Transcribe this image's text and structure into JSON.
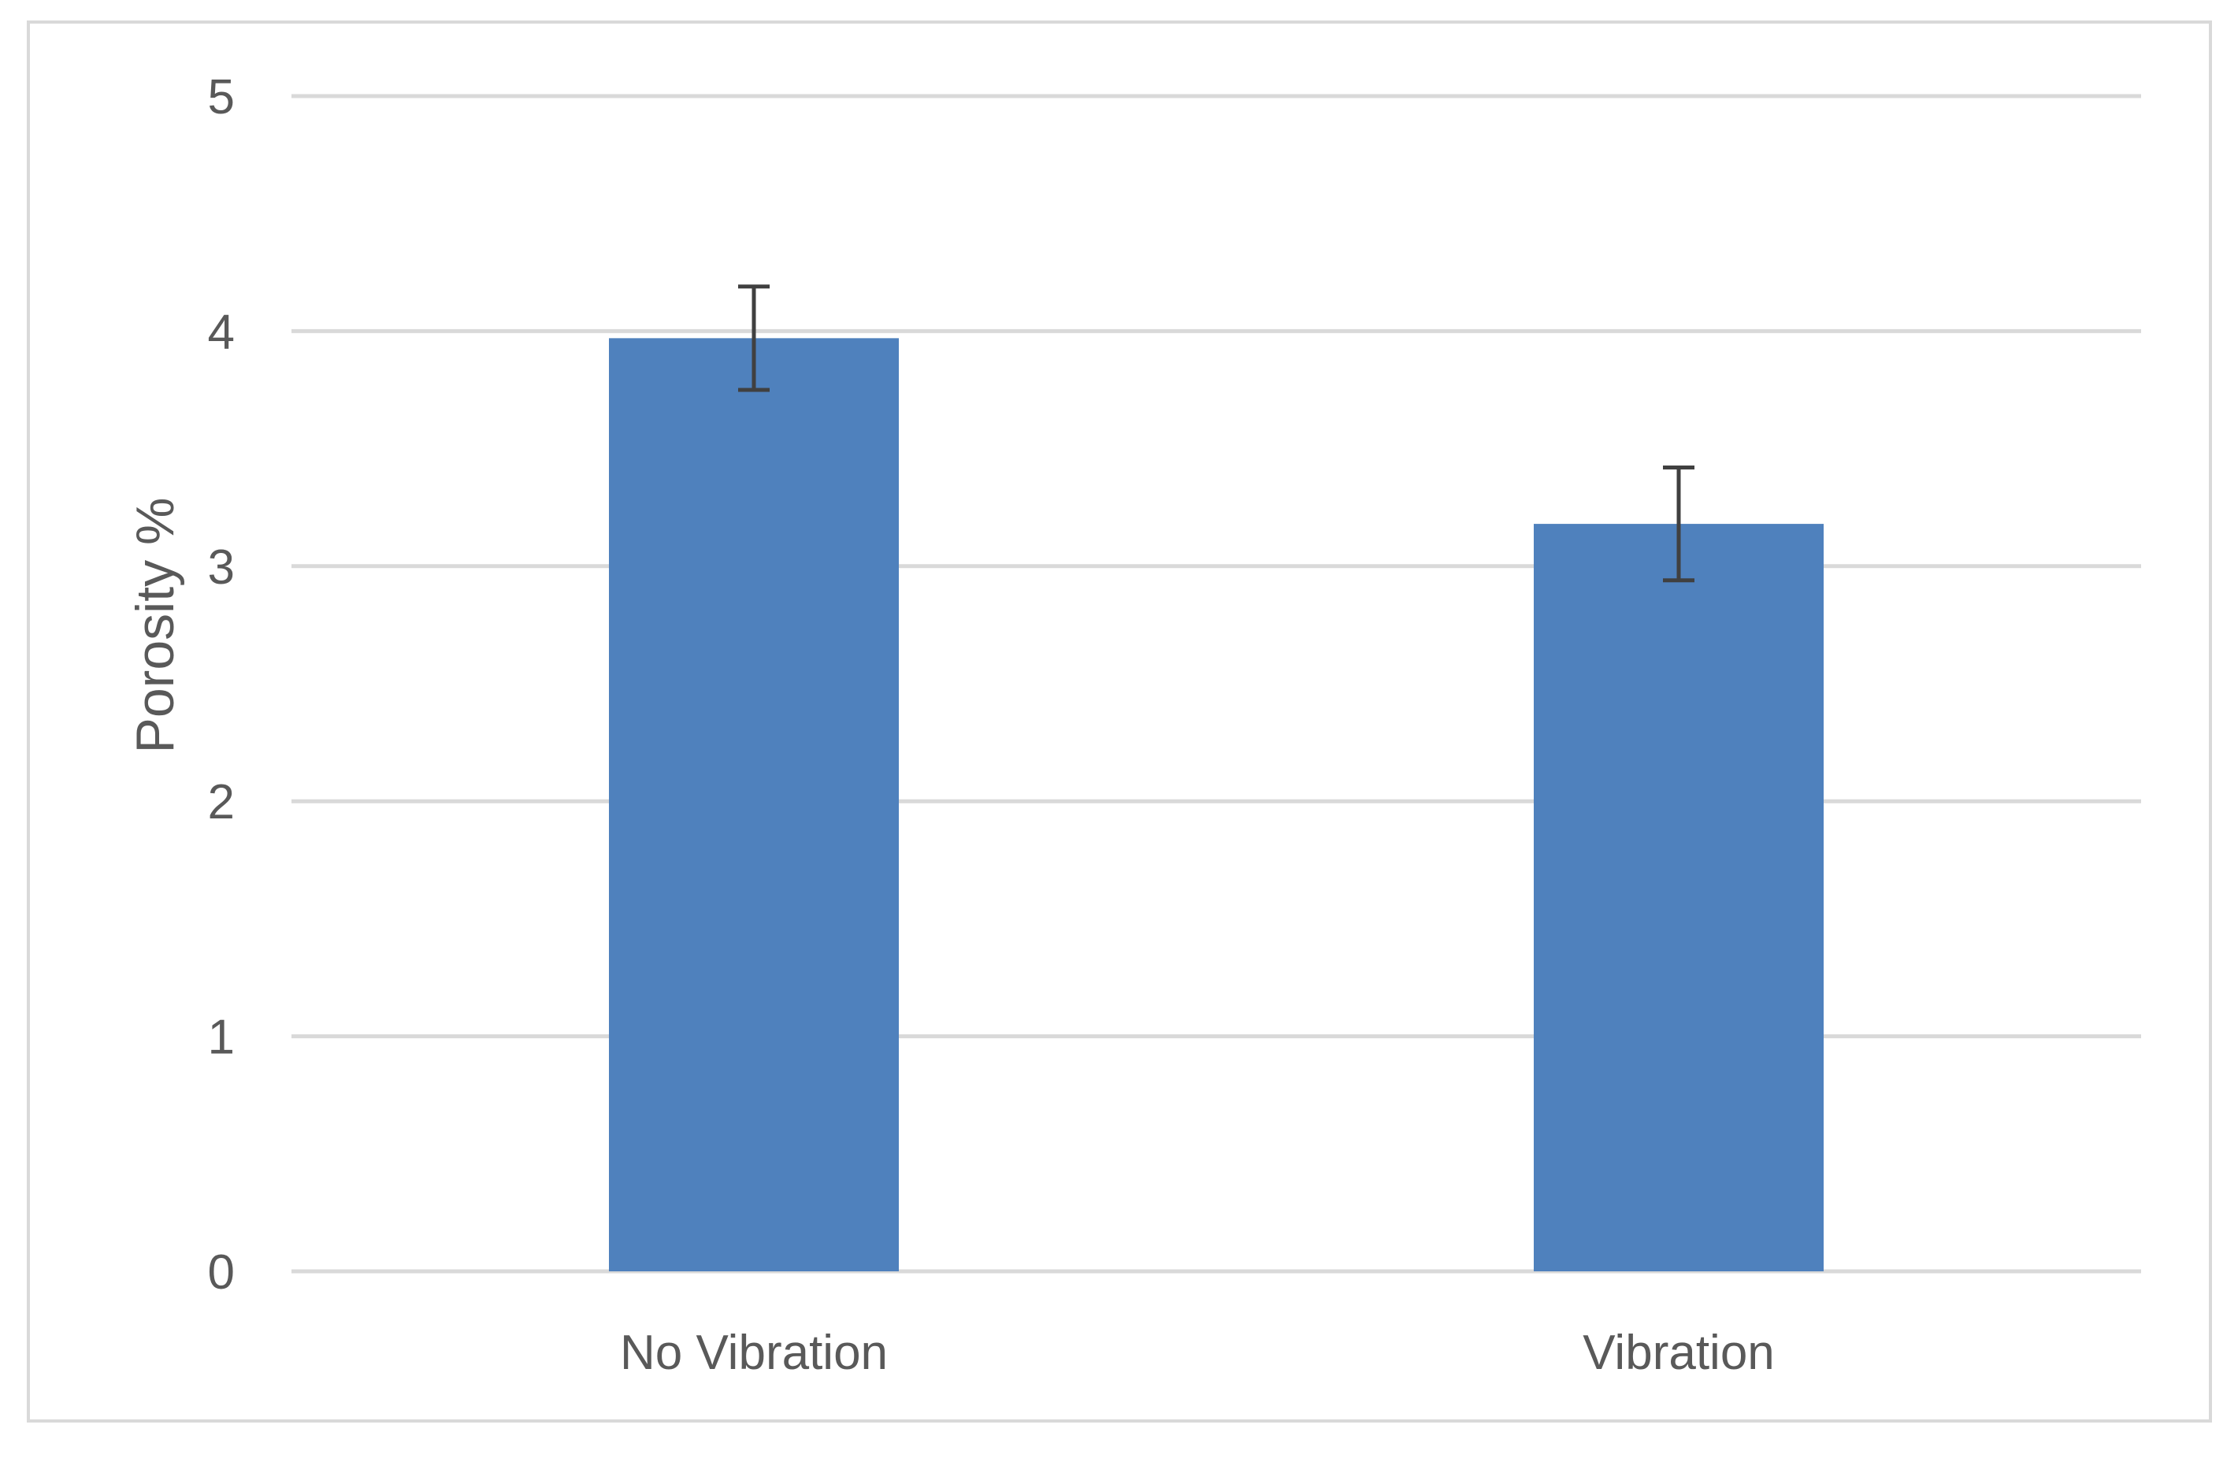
{
  "chart_data": {
    "type": "bar",
    "categories": [
      "No Vibration",
      "Vibration"
    ],
    "series": [
      {
        "values": [
          3.97,
          3.18
        ],
        "error": [
          0.22,
          0.24
        ]
      }
    ],
    "title": "",
    "xlabel": "",
    "ylabel": "Porosity %",
    "ylim": [
      0,
      5
    ],
    "yticks": [
      "0",
      "1",
      "2",
      "3",
      "4",
      "5"
    ],
    "grid": true,
    "legend": "none",
    "colors": {
      "bar": "#4f81bd",
      "grid": "#d9d9d9",
      "error_bar": "#404040",
      "text": "#595959"
    }
  }
}
